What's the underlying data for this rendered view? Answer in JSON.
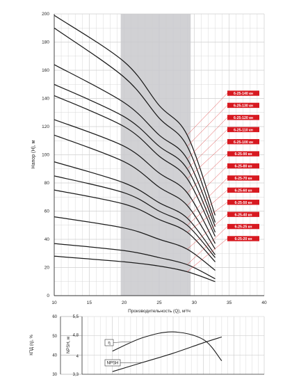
{
  "chart_data": [
    {
      "type": "line",
      "xlabel": "Производительность (Q), м³/ч",
      "ylabel": "Напор (H), м",
      "xlim": [
        10,
        40
      ],
      "ylim": [
        0,
        200
      ],
      "x_ticks": [
        "10",
        "15",
        "20",
        "25",
        "30",
        "35",
        "40"
      ],
      "y_ticks": [
        "0",
        "20",
        "40",
        "60",
        "80",
        "100",
        "120",
        "140",
        "160",
        "180",
        "200"
      ],
      "grid": true,
      "shaded_region": {
        "x": [
          19.5,
          29.5
        ]
      },
      "series": [
        {
          "name": "6-25-140 кн",
          "x": [
            10,
            20,
            25,
            29,
            33
          ],
          "y": [
            199,
            166,
            135,
            114,
            57
          ]
        },
        {
          "name": "6-25-130 кн",
          "x": [
            10,
            20,
            25,
            29,
            33
          ],
          "y": [
            190,
            155,
            126,
            106,
            52
          ]
        },
        {
          "name": "6-25-120 кн",
          "x": [
            10,
            20,
            25,
            29,
            33
          ],
          "y": [
            164,
            137,
            114,
            97,
            49
          ]
        },
        {
          "name": "6-25-110 кн",
          "x": [
            10,
            20,
            25,
            29,
            33
          ],
          "y": [
            150,
            127,
            106,
            90,
            45
          ]
        },
        {
          "name": "6-25-100 кн",
          "x": [
            10,
            20,
            25,
            29,
            33
          ],
          "y": [
            142,
            120,
            99,
            83,
            42
          ]
        },
        {
          "name": "6-25-90 кн",
          "x": [
            10,
            20,
            25,
            29,
            33
          ],
          "y": [
            125,
            106,
            87,
            73,
            37
          ]
        },
        {
          "name": "6-25-80 кн",
          "x": [
            10,
            20,
            25,
            29,
            33
          ],
          "y": [
            114,
            95,
            77,
            64,
            33
          ]
        },
        {
          "name": "6-25-70 кн",
          "x": [
            10,
            20,
            25,
            29,
            33
          ],
          "y": [
            95,
            80,
            66,
            55,
            29
          ]
        },
        {
          "name": "6-25-60 кн",
          "x": [
            10,
            20,
            25,
            29,
            33
          ],
          "y": [
            85,
            73,
            60,
            50,
            27
          ]
        },
        {
          "name": "6-25-50 кн",
          "x": [
            10,
            20,
            25,
            29,
            33
          ],
          "y": [
            75,
            65,
            54,
            45,
            24
          ]
        },
        {
          "name": "6-25-40 кн",
          "x": [
            10,
            20,
            25,
            29,
            33
          ],
          "y": [
            56,
            48,
            40,
            33,
            18
          ]
        },
        {
          "name": "6-25-25 кн",
          "x": [
            10,
            20,
            25,
            29,
            33
          ],
          "y": [
            37,
            32,
            27,
            22,
            12
          ]
        },
        {
          "name": "6-25-20 кн",
          "x": [
            10,
            20,
            25,
            29,
            33
          ],
          "y": [
            28,
            24,
            21,
            17,
            10
          ]
        }
      ]
    },
    {
      "type": "line",
      "left_axis_label": "КПД (η), %",
      "left_ticks": [
        "30",
        "40",
        "50",
        "60"
      ],
      "left_ylim": [
        30,
        60
      ],
      "npsh_axis_label": "NPSH, м",
      "npsh_ticks": [
        "3,3",
        "4",
        "4,8",
        "5,5"
      ],
      "npsh_ylim": [
        3.3,
        5.5
      ],
      "xlim": [
        10,
        40
      ],
      "series": [
        {
          "name": "η",
          "axis": "left",
          "x": [
            15,
            20,
            25,
            30,
            33
          ],
          "y": [
            42,
            49,
            52,
            48,
            37
          ]
        },
        {
          "name": "NPSH",
          "axis": "npsh",
          "x": [
            15,
            20,
            25,
            30,
            33
          ],
          "y": [
            3.4,
            3.75,
            4.1,
            4.5,
            4.72
          ]
        }
      ]
    }
  ]
}
